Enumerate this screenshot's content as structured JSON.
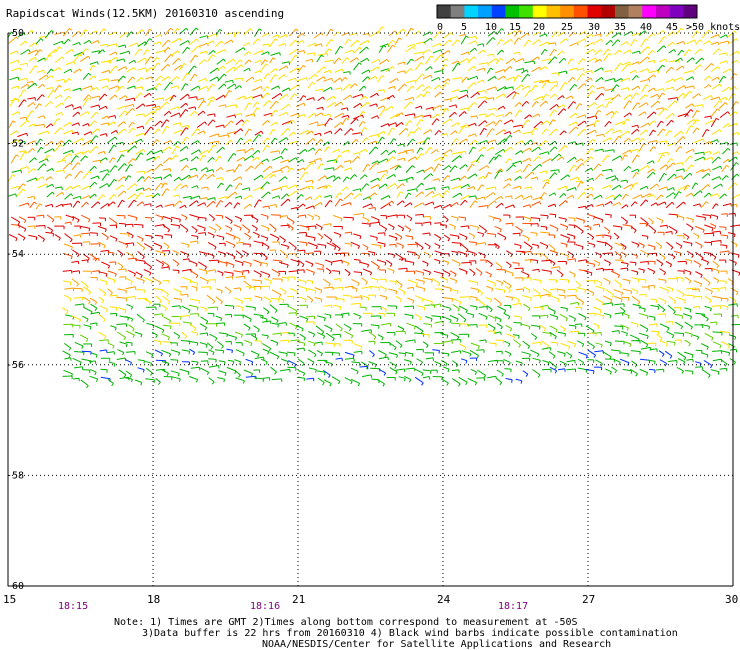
{
  "title": "Rapidscat Winds(12.5KM) 20160310 ascending",
  "colorbar": {
    "ticks": [
      "0",
      "5",
      "10",
      "15",
      "20",
      "25",
      "30",
      "35",
      "40",
      "45",
      ">50 knots"
    ],
    "colors": [
      "#404040",
      "#7f7f7f",
      "#00d4ff",
      "#00a0ff",
      "#0040ff",
      "#00c000",
      "#40e000",
      "#ffff00",
      "#ffc000",
      "#ff9000",
      "#ff5000",
      "#e00000",
      "#b00000",
      "#806040",
      "#b08060",
      "#ff00ff",
      "#c000c0",
      "#8000c0",
      "#600080"
    ]
  },
  "map": {
    "lat_labels": [
      "-50",
      "-52",
      "-54",
      "-56",
      "-58",
      "-60"
    ],
    "lon_labels": [
      "15",
      "18",
      "21",
      "24",
      "27",
      "30"
    ],
    "time_labels": [
      "18:15",
      "18:16",
      "18:17"
    ],
    "time_color": "#800080"
  },
  "notes": {
    "line1": "Note: 1) Times are GMT 2)Times along bottom correspond to measurement at -50S",
    "line2": "3)Data buffer is 22 hrs from 20160310 4) Black wind barbs indicate possible contamination",
    "line3": "NOAA/NESDIS/Center for Satellite Applications and Research"
  },
  "wind_colors": {
    "blue": "#0030ff",
    "green": "#00b400",
    "lightgreen": "#60d000",
    "yellow": "#ffe000",
    "orange": "#ffa000",
    "redorange": "#ff5000",
    "red": "#e00000"
  }
}
